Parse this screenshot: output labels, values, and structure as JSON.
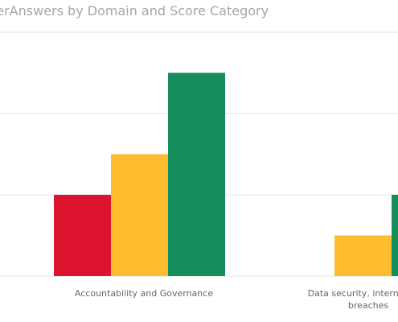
{
  "chart_data": {
    "type": "bar",
    "title": "...erAnswers by Domain and Score Category",
    "xlabel": "",
    "ylabel": "",
    "ylim": [
      0,
      3
    ],
    "grid": true,
    "categories": [
      "Accountability and Governance",
      "Data security, international ... breaches"
    ],
    "category_label_lines": [
      [
        "Accountability and Governance"
      ],
      [
        "Data security, international",
        "breaches"
      ]
    ],
    "series": [
      {
        "values": [
          1,
          0
        ],
        "color": "#dc1430"
      },
      {
        "values": [
          1.5,
          0.5
        ],
        "color": "#fdbd2f"
      },
      {
        "values": [
          2.5,
          1
        ],
        "color": "#168e5c"
      }
    ]
  }
}
